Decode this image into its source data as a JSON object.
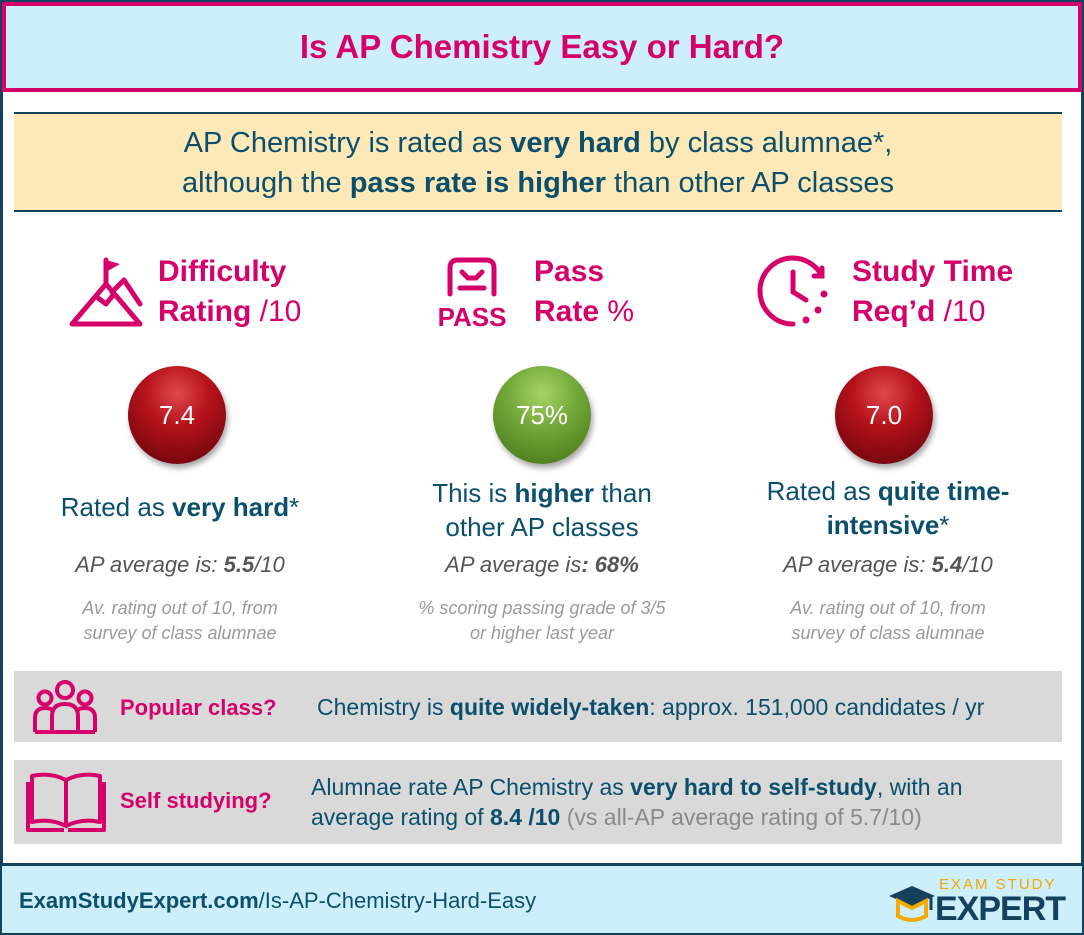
{
  "title": "Is AP Chemistry Easy or Hard?",
  "summary": {
    "line1_a": "AP Chemistry",
    "line1_b": " is rated as ",
    "line1_bold": "very hard",
    "line1_c": " by class alumnae*,",
    "line2_a": "although the ",
    "line2_bold": "pass rate is higher",
    "line2_c": " than other AP classes"
  },
  "difficulty": {
    "icon": "mountain-flag-icon",
    "title_1": "Difficulty",
    "title_2": "Rating",
    "unit": " /10",
    "value": "7.4",
    "verdict_a": "Rated as ",
    "verdict_bold": "very hard",
    "verdict_c": "*",
    "avg_label": "AP average is: ",
    "avg_value": "5.5",
    "avg_unit": "/10",
    "note_1": "Av. rating out of 10, from",
    "note_2": "survey of class alumnae"
  },
  "pass": {
    "icon": "pass-icon",
    "icon_text": "PASS",
    "title_1": "Pass",
    "title_2": "Rate",
    "unit": " %",
    "value": "75%",
    "verdict_a": "This is ",
    "verdict_bold": "higher",
    "verdict_c": " than",
    "verdict_line2": "other AP classes",
    "avg_label": "AP average is",
    "avg_value": ": 68%",
    "note_1": "% scoring passing grade of 3/5",
    "note_2": "or higher last year"
  },
  "study": {
    "icon": "clock-icon",
    "title_1": "Study Time",
    "title_2": "Req’d",
    "unit": " /10",
    "value": "7.0",
    "verdict_a": "Rated as ",
    "verdict_bold": "quite time-",
    "verdict_line2_bold": "intensive",
    "verdict_line2_c": "*",
    "avg_label": "AP average is: ",
    "avg_value": "5.4",
    "avg_unit": "/10",
    "note_1": "Av. rating out of 10, from",
    "note_2": "survey of class alumnae"
  },
  "popular": {
    "icon": "people-icon",
    "label": "Popular class?",
    "text_a": "Chemistry is ",
    "text_bold": "quite widely-taken",
    "text_c": ": approx. 151,000  candidates / yr"
  },
  "self_study": {
    "icon": "open-book-icon",
    "label": "Self studying?",
    "text_a": "Alumnae rate AP Chemistry as ",
    "text_bold": "very hard to self-study",
    "text_c": ", with an",
    "text2_a": "average rating of ",
    "text2_bold": "8.4 /10",
    "text2_muted": " (vs all-AP average rating of 5.7/10)"
  },
  "footer": {
    "url_bold": "ExamStudyExpert.com",
    "url_rest": "/Is-AP-Chemistry-Hard-Easy",
    "logo_icon": "graduation-cap-icon",
    "logo_top": "EXAM STUDY",
    "logo_bottom": "EXPERT"
  },
  "colors": {
    "accent_pink": "#d6006b",
    "navy": "#0b4f6c",
    "title_bg": "#cdeffb",
    "summary_bg": "#fde8b8",
    "row_bg": "#d9d9d9",
    "red_ball": "#b5121b",
    "green_ball": "#74a83a",
    "logo_gold": "#f2a900"
  }
}
